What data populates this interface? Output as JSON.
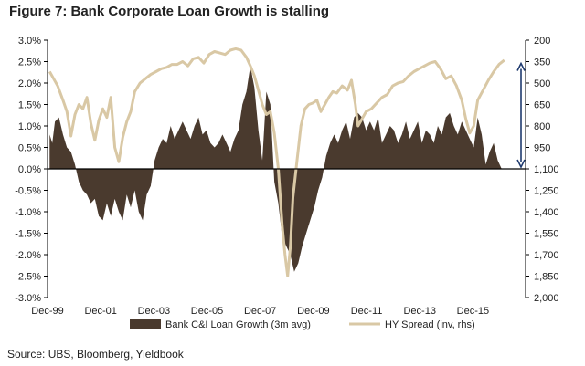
{
  "title": "Figure 7: Bank Corporate Loan Growth is stalling",
  "source": "Source:  UBS, Bloomberg, Yieldbook",
  "colors": {
    "loan_fill": "#4a3a2e",
    "spread_line": "#d9c8a5",
    "arrow": "#1f3a6e",
    "axis": "#000000",
    "text": "#222222"
  },
  "chart_data": {
    "type": "area",
    "title": "Figure 7: Bank Corporate Loan Growth is stalling",
    "x_tick_labels": [
      "Dec-99",
      "Dec-01",
      "Dec-03",
      "Dec-05",
      "Dec-07",
      "Dec-09",
      "Dec-11",
      "Dec-13",
      "Dec-15"
    ],
    "x_range": [
      1999.92,
      2017.9
    ],
    "left_axis": {
      "ticks": [
        "3.0%",
        "2.5%",
        "2.0%",
        "1.5%",
        "1.0%",
        "0.5%",
        "0.0%",
        "-0.5%",
        "-1.0%",
        "-1.5%",
        "-2.0%",
        "-2.5%",
        "-3.0%"
      ],
      "range": [
        -3.0,
        3.0
      ],
      "unit": "%"
    },
    "right_axis": {
      "ticks": [
        "200",
        "350",
        "500",
        "650",
        "800",
        "950",
        "1,100",
        "1,250",
        "1,400",
        "1,550",
        "1,700",
        "1,850",
        "2,000"
      ],
      "range": [
        200,
        2000
      ],
      "inverted": true,
      "unit": "bp"
    },
    "legend": [
      "Bank C&I Loan Growth (3m avg)",
      "HY Spread (inv, rhs)"
    ],
    "series": [
      {
        "name": "Bank C&I Loan Growth (3m avg)",
        "axis": "left",
        "style": "area",
        "x": [
          2000.0,
          2000.1,
          2000.2,
          2000.35,
          2000.5,
          2000.65,
          2000.8,
          2000.95,
          2001.1,
          2001.25,
          2001.4,
          2001.55,
          2001.7,
          2001.85,
          2002.0,
          2002.15,
          2002.3,
          2002.45,
          2002.6,
          2002.75,
          2002.9,
          2003.05,
          2003.2,
          2003.35,
          2003.5,
          2003.65,
          2003.8,
          2003.95,
          2004.1,
          2004.25,
          2004.4,
          2004.55,
          2004.7,
          2004.85,
          2005.0,
          2005.15,
          2005.3,
          2005.45,
          2005.6,
          2005.75,
          2005.9,
          2006.05,
          2006.2,
          2006.35,
          2006.5,
          2006.65,
          2006.8,
          2006.95,
          2007.1,
          2007.25,
          2007.4,
          2007.55,
          2007.7,
          2007.85,
          2008.0,
          2008.15,
          2008.3,
          2008.45,
          2008.6,
          2008.75,
          2008.9,
          2009.05,
          2009.2,
          2009.35,
          2009.5,
          2009.65,
          2009.8,
          2009.95,
          2010.1,
          2010.25,
          2010.4,
          2010.55,
          2010.7,
          2010.85,
          2011.0,
          2011.15,
          2011.3,
          2011.45,
          2011.6,
          2011.75,
          2011.9,
          2012.05,
          2012.2,
          2012.35,
          2012.5,
          2012.65,
          2012.8,
          2012.95,
          2013.1,
          2013.25,
          2013.4,
          2013.55,
          2013.7,
          2013.85,
          2014.0,
          2014.15,
          2014.3,
          2014.45,
          2014.6,
          2014.75,
          2014.9,
          2015.05,
          2015.2,
          2015.35,
          2015.5,
          2015.65,
          2015.8,
          2015.95,
          2016.1,
          2016.25,
          2016.4,
          2016.55,
          2016.7,
          2016.85,
          2017.0
        ],
        "values": [
          0.8,
          0.6,
          1.1,
          1.2,
          0.8,
          0.5,
          0.4,
          0.1,
          -0.3,
          -0.5,
          -0.6,
          -0.8,
          -0.7,
          -1.1,
          -1.2,
          -0.8,
          -1.1,
          -0.7,
          -1.0,
          -1.2,
          -0.6,
          -0.9,
          -0.5,
          -1.0,
          -1.2,
          -0.6,
          -0.4,
          0.2,
          0.5,
          0.7,
          0.6,
          1.0,
          0.7,
          0.9,
          1.1,
          0.9,
          0.7,
          1.0,
          1.2,
          0.8,
          0.9,
          0.6,
          0.5,
          0.6,
          0.8,
          0.6,
          0.4,
          0.7,
          0.9,
          1.5,
          1.8,
          2.4,
          1.9,
          0.9,
          0.2,
          1.8,
          1.5,
          -0.3,
          -0.8,
          -1.6,
          -1.8,
          -2.0,
          -2.4,
          -2.2,
          -1.8,
          -1.5,
          -1.2,
          -0.9,
          -0.5,
          -0.2,
          0.3,
          0.6,
          0.8,
          0.6,
          0.9,
          1.1,
          0.7,
          1.2,
          1.3,
          1.2,
          0.9,
          1.1,
          0.9,
          1.2,
          0.6,
          0.8,
          1.0,
          0.9,
          0.6,
          0.8,
          1.1,
          0.7,
          0.9,
          1.1,
          0.6,
          0.9,
          0.8,
          0.6,
          1.0,
          0.8,
          1.2,
          1.3,
          1.0,
          0.8,
          1.1,
          0.9,
          0.7,
          0.5,
          1.2,
          0.8,
          0.1,
          0.4,
          0.6,
          0.2,
          0.0
        ]
      },
      {
        "name": "HY Spread (inv, rhs)",
        "axis": "right",
        "style": "line",
        "x": [
          2000.0,
          2000.15,
          2000.3,
          2000.5,
          2000.65,
          2000.8,
          2000.95,
          2001.1,
          2001.25,
          2001.4,
          2001.55,
          2001.7,
          2001.85,
          2002.0,
          2002.15,
          2002.3,
          2002.45,
          2002.6,
          2002.75,
          2002.9,
          2003.05,
          2003.2,
          2003.4,
          2003.6,
          2003.8,
          2004.0,
          2004.2,
          2004.4,
          2004.6,
          2004.8,
          2005.0,
          2005.2,
          2005.4,
          2005.6,
          2005.8,
          2006.0,
          2006.2,
          2006.4,
          2006.6,
          2006.8,
          2007.0,
          2007.2,
          2007.4,
          2007.55,
          2007.7,
          2007.85,
          2008.0,
          2008.15,
          2008.3,
          2008.45,
          2008.6,
          2008.75,
          2008.85,
          2008.95,
          2009.05,
          2009.15,
          2009.3,
          2009.45,
          2009.6,
          2009.75,
          2009.9,
          2010.05,
          2010.2,
          2010.35,
          2010.5,
          2010.65,
          2010.8,
          2011.0,
          2011.2,
          2011.35,
          2011.5,
          2011.6,
          2011.75,
          2011.9,
          2012.1,
          2012.3,
          2012.5,
          2012.7,
          2012.9,
          2013.1,
          2013.3,
          2013.5,
          2013.7,
          2013.9,
          2014.1,
          2014.3,
          2014.5,
          2014.7,
          2014.9,
          2015.1,
          2015.3,
          2015.5,
          2015.65,
          2015.8,
          2015.95,
          2016.1,
          2016.3,
          2016.5,
          2016.7,
          2016.9,
          2017.1
        ],
        "values": [
          420,
          470,
          520,
          620,
          700,
          870,
          720,
          650,
          680,
          600,
          780,
          900,
          760,
          680,
          740,
          600,
          950,
          1050,
          880,
          770,
          700,
          560,
          500,
          470,
          440,
          420,
          400,
          390,
          370,
          370,
          350,
          380,
          330,
          320,
          360,
          300,
          280,
          290,
          300,
          270,
          260,
          270,
          320,
          380,
          450,
          550,
          650,
          720,
          700,
          850,
          1100,
          1500,
          1700,
          1850,
          1650,
          1300,
          1050,
          800,
          680,
          650,
          640,
          620,
          700,
          650,
          600,
          560,
          570,
          520,
          550,
          480,
          650,
          800,
          750,
          700,
          680,
          640,
          600,
          580,
          520,
          500,
          490,
          450,
          420,
          400,
          380,
          360,
          350,
          400,
          470,
          450,
          520,
          620,
          750,
          850,
          800,
          620,
          550,
          480,
          420,
          370,
          340
        ]
      }
    ],
    "annotation": "double-headed arrow at latest date spanning HY spread 350 to 1,100"
  }
}
